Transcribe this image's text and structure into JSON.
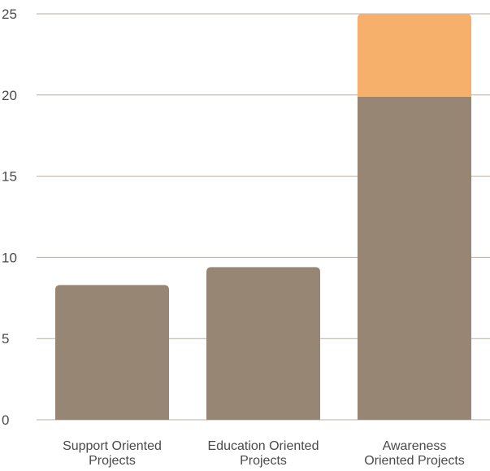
{
  "chart_data": {
    "type": "bar",
    "stacked": true,
    "title": "",
    "xlabel": "",
    "ylabel": "",
    "categories": [
      [
        "Support Oriented",
        "Projects"
      ],
      [
        "Education Oriented",
        "Projects"
      ],
      [
        "Awareness",
        "Oriented Projects"
      ]
    ],
    "series": [
      {
        "color": "#978674",
        "values": [
          8.3,
          9.4,
          19.9
        ]
      },
      {
        "color": "#f6b06b",
        "values": [
          0,
          0,
          5.1
        ]
      }
    ],
    "ylim": [
      0,
      25
    ],
    "yticks": [
      "0",
      "5",
      "10",
      "15",
      "20",
      "25"
    ],
    "grid": true,
    "legend": "none"
  }
}
